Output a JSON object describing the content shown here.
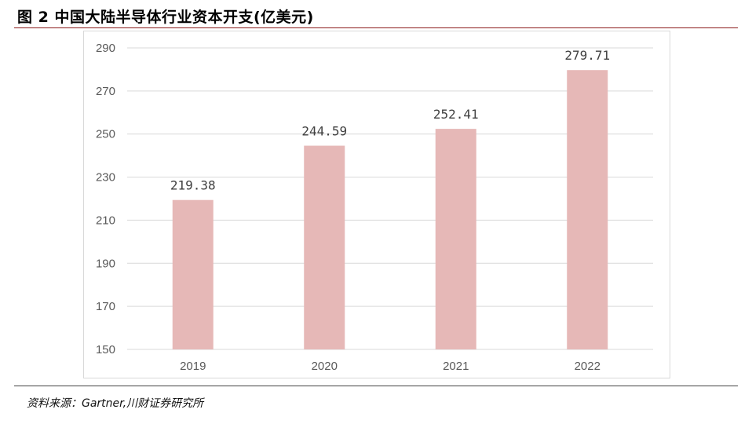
{
  "figure": {
    "title": "图 2 中国大陆半导体行业资本开支(亿美元)",
    "source": "资料来源：Gartner,川财证券研究所"
  },
  "colors": {
    "bar": "#e6b8b7",
    "grid": "#d9d9d9",
    "rule_top": "#8b1a1a",
    "axis_text": "#595959"
  },
  "chart_data": {
    "type": "bar",
    "title": "",
    "xlabel": "",
    "ylabel": "",
    "categories": [
      "2019",
      "2020",
      "2021",
      "2022"
    ],
    "values": [
      219.38,
      244.59,
      252.41,
      279.71
    ],
    "data_labels": [
      "219.38",
      "244.59",
      "252.41",
      "279.71"
    ],
    "ylim": [
      150,
      290
    ],
    "yticks": [
      150,
      170,
      190,
      210,
      230,
      250,
      270,
      290
    ],
    "grid": true,
    "legend": "none"
  }
}
